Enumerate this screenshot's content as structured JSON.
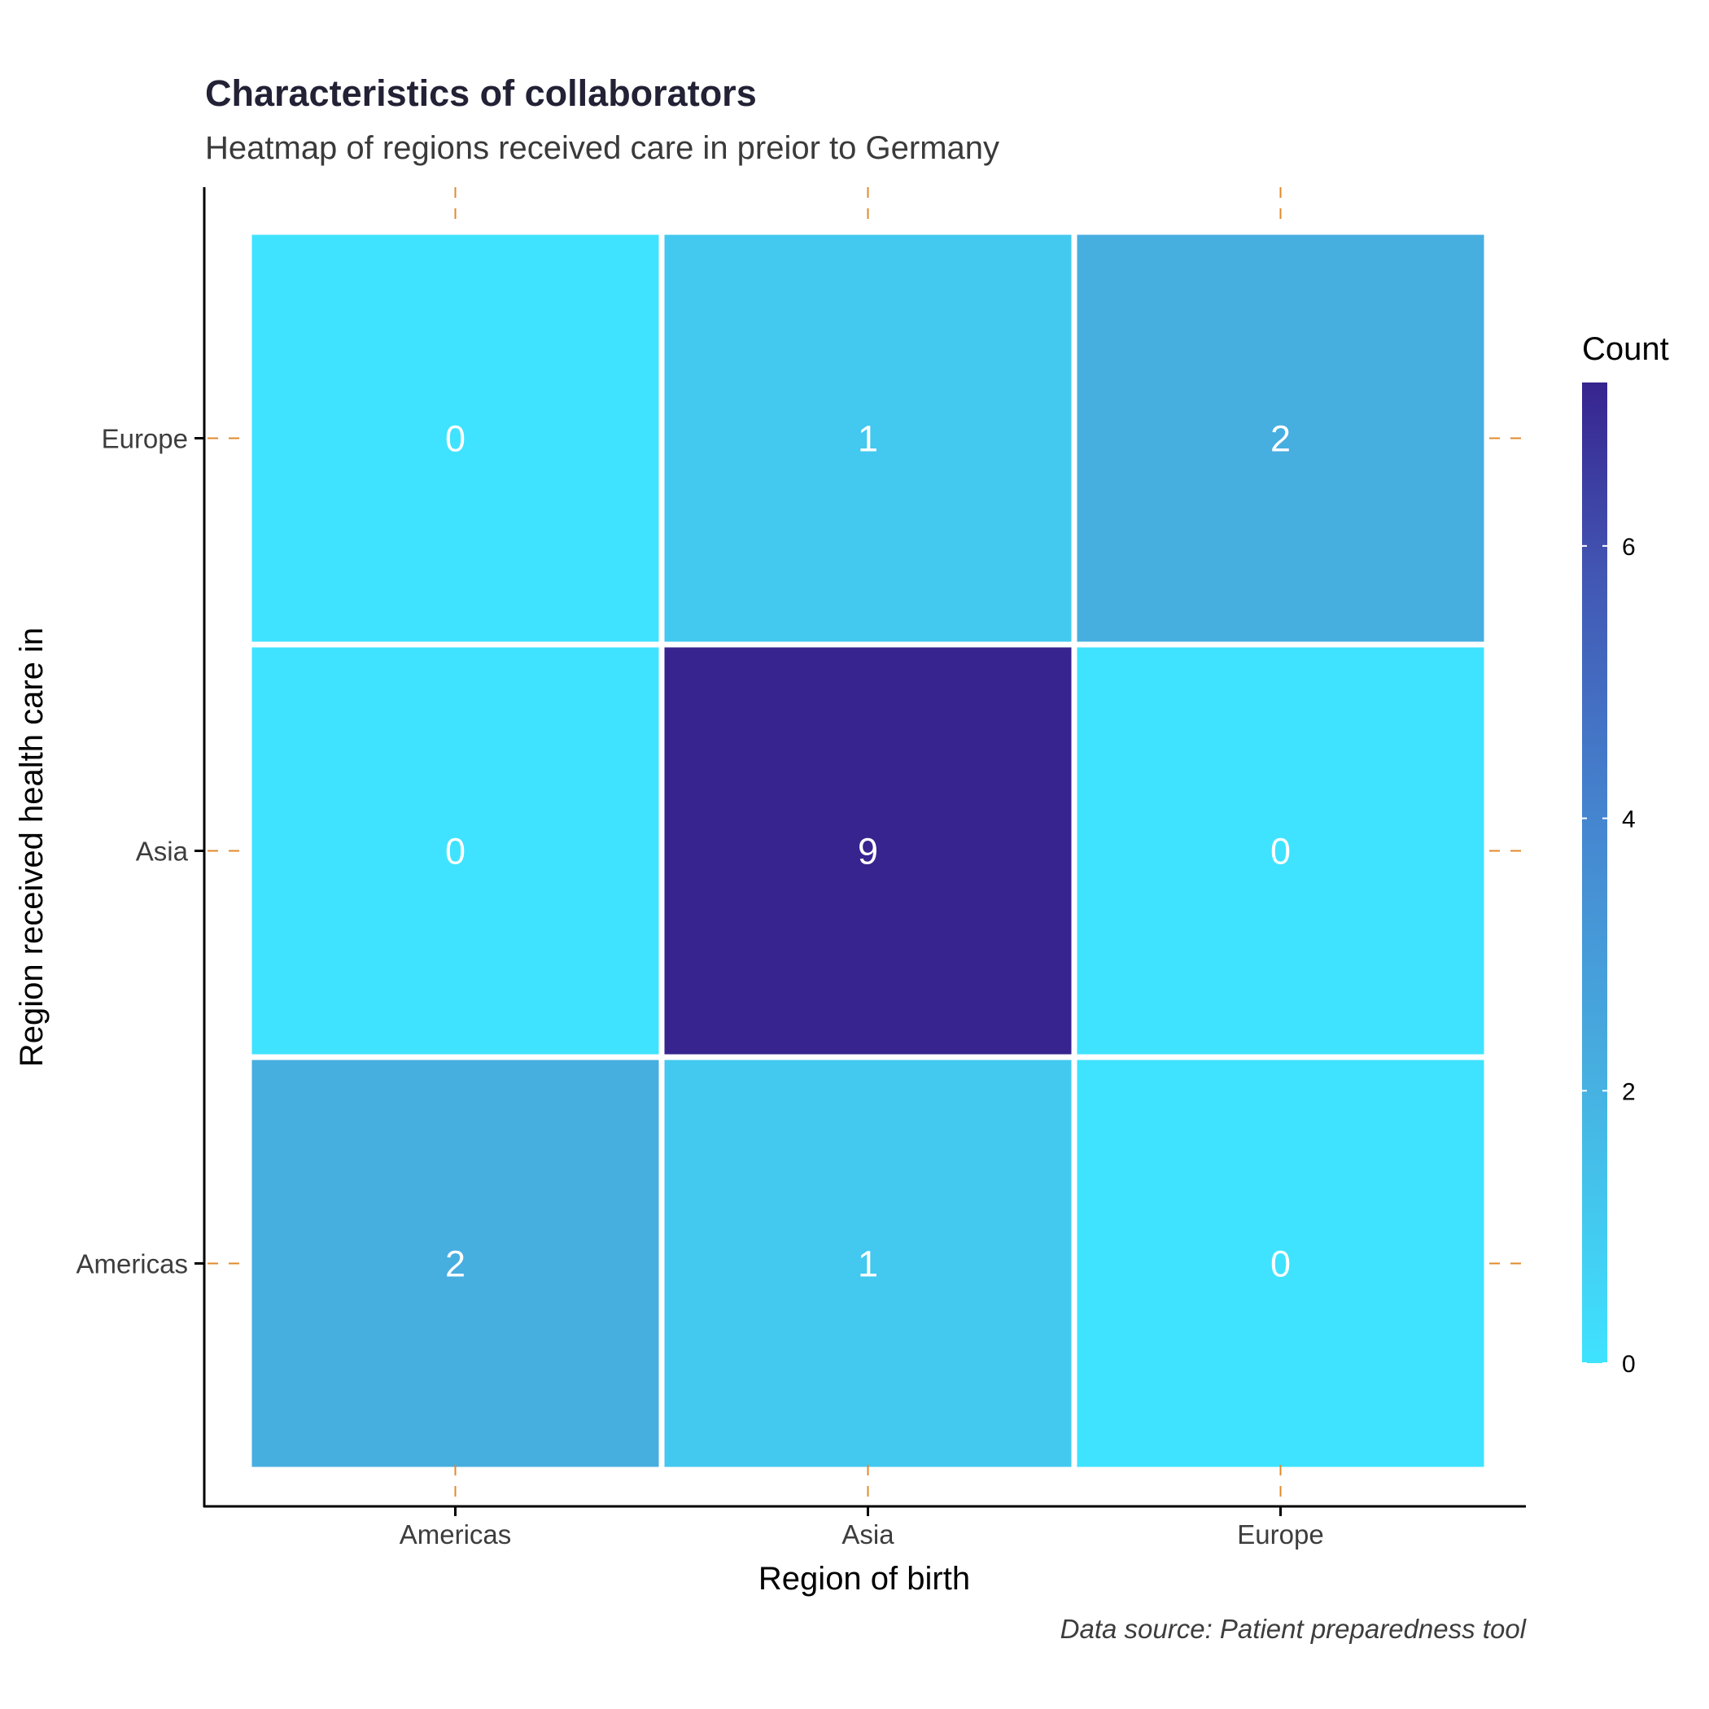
{
  "chart_data": {
    "type": "heatmap",
    "title": "Characteristics of collaborators",
    "subtitle": "Heatmap of regions received care in preior to Germany",
    "xlabel": "Region of birth",
    "ylabel": "Region received health care in",
    "caption": "Data source: Patient preparedness tool",
    "x_categories": [
      "Americas",
      "Asia",
      "Europe"
    ],
    "y_categories": [
      "Americas",
      "Asia",
      "Europe"
    ],
    "cells": [
      {
        "x": "Americas",
        "y": "Europe",
        "value": 0
      },
      {
        "x": "Asia",
        "y": "Europe",
        "value": 1
      },
      {
        "x": "Europe",
        "y": "Europe",
        "value": 2
      },
      {
        "x": "Americas",
        "y": "Asia",
        "value": 0
      },
      {
        "x": "Asia",
        "y": "Asia",
        "value": 9
      },
      {
        "x": "Europe",
        "y": "Asia",
        "value": 0
      },
      {
        "x": "Americas",
        "y": "Americas",
        "value": 2
      },
      {
        "x": "Asia",
        "y": "Americas",
        "value": 1
      },
      {
        "x": "Europe",
        "y": "Americas",
        "value": 0
      }
    ],
    "legend": {
      "title": "Count",
      "placement": "right",
      "ticks": [
        0,
        2,
        4,
        6
      ],
      "range": [
        0,
        7.2
      ],
      "color_low": "#3fe3ff",
      "color_high": "#37248f",
      "cell_colors": {
        "0": "#3fe3ff",
        "1": "#43c8ef",
        "2": "#47aee0",
        "9": "#37248f"
      }
    },
    "grid": false,
    "tick_mark_color": "#e08a2b"
  }
}
